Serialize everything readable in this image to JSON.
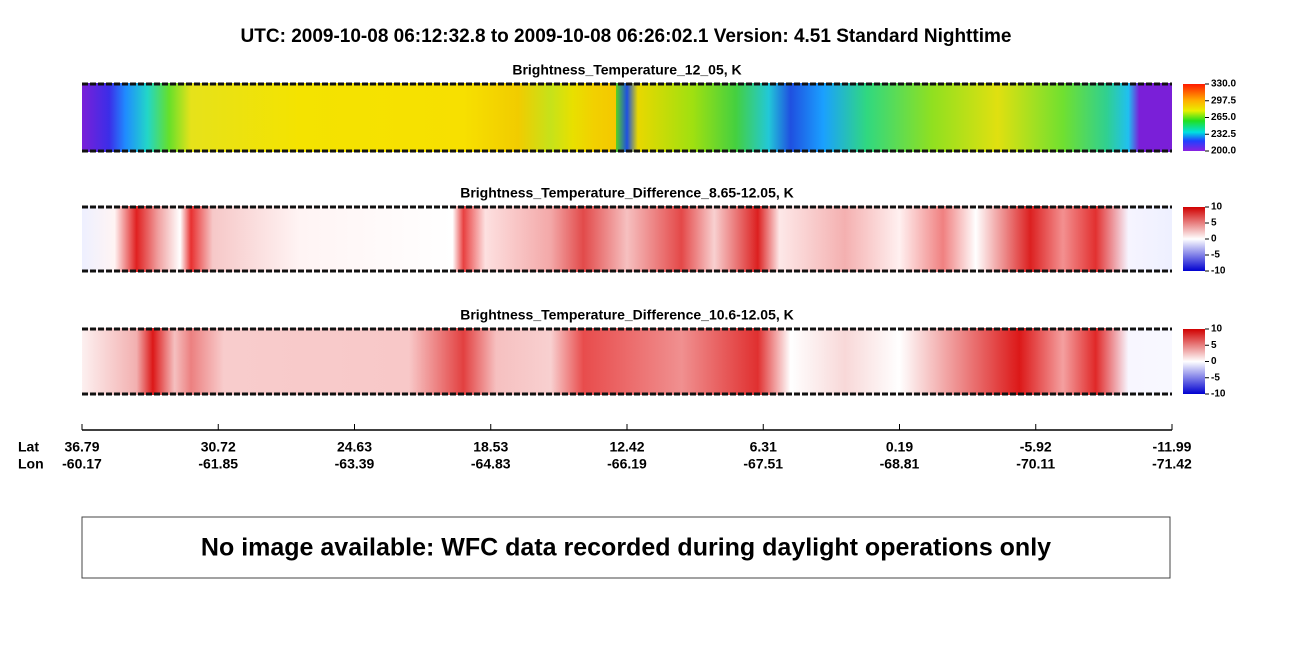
{
  "header": {
    "title": "UTC:  2009-10-08   06:12:32.8  to  2009-10-08   06:26:02.1    Version: 4.51  Standard Nighttime"
  },
  "panels": [
    {
      "title": "Brightness_Temperature_12_05, K",
      "colorbar_labels": [
        "330.0",
        "297.5",
        "265.0",
        "232.5",
        "200.0"
      ]
    },
    {
      "title": "Brightness_Temperature_Difference_8.65-12.05, K",
      "colorbar_labels": [
        "10",
        "5",
        "0",
        "-5",
        "-10"
      ]
    },
    {
      "title": "Brightness_Temperature_Difference_10.6-12.05, K",
      "colorbar_labels": [
        "10",
        "5",
        "0",
        "-5",
        "-10"
      ]
    }
  ],
  "axis": {
    "lat_label": "Lat",
    "lon_label": "Lon",
    "lat": [
      "36.79",
      "30.72",
      "24.63",
      "18.53",
      "12.42",
      "6.31",
      "0.19",
      "-5.92",
      "-11.99"
    ],
    "lon": [
      "-60.17",
      "-61.85",
      "-63.39",
      "-64.83",
      "-66.19",
      "-67.51",
      "-68.81",
      "-70.11",
      "-71.42"
    ]
  },
  "message": "No image available: WFC data recorded during daylight operations only"
}
